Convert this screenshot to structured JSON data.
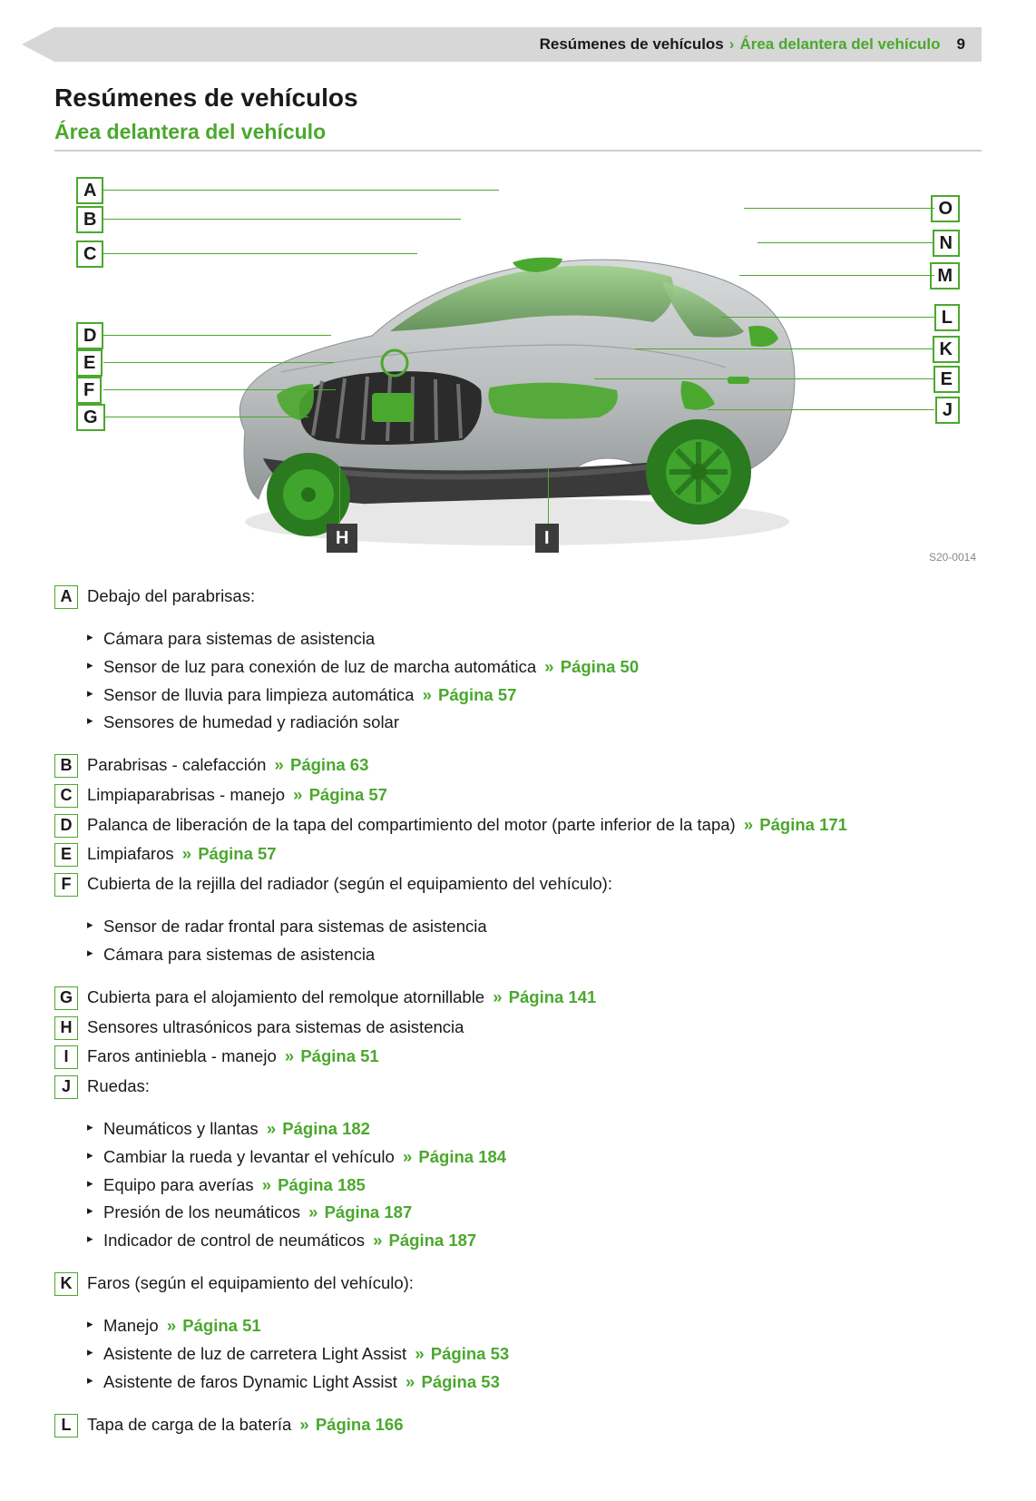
{
  "colors": {
    "green": "#4ba82e",
    "grey": "#c8c8c8"
  },
  "header": {
    "section": "Resúmenes de vehículos",
    "separator": "›",
    "subsection": "Área delantera del vehículo",
    "page_number": "9"
  },
  "title": "Resúmenes de vehículos",
  "subtitle": "Área delantera del vehículo",
  "figure": {
    "code": "S20-0014",
    "callouts_left": [
      "A",
      "B",
      "C",
      "D",
      "E",
      "F",
      "G"
    ],
    "callouts_right": [
      "O",
      "N",
      "M",
      "L",
      "K",
      "E",
      "J"
    ],
    "callouts_bottom": [
      "H",
      "I"
    ]
  },
  "xref_prefix": "» ",
  "items": [
    {
      "key": "A",
      "text": "Debajo del parabrisas:",
      "subs": [
        {
          "text": "Cámara para sistemas de asistencia"
        },
        {
          "text": "Sensor de luz para conexión de luz de marcha automática",
          "xref": "Página 50"
        },
        {
          "text": "Sensor de lluvia para limpieza automática",
          "xref": "Página 57"
        },
        {
          "text": "Sensores de humedad y radiación solar"
        }
      ]
    },
    {
      "key": "B",
      "text": "Parabrisas - calefacción",
      "xref": "Página 63"
    },
    {
      "key": "C",
      "text": "Limpiaparabrisas - manejo",
      "xref": "Página 57"
    },
    {
      "key": "D",
      "text": "Palanca de liberación de la tapa del compartimiento del motor (parte inferior de la tapa)",
      "xref": "Página 171"
    },
    {
      "key": "E",
      "text": "Limpiafaros",
      "xref": "Página 57"
    },
    {
      "key": "F",
      "text": "Cubierta de la rejilla del radiador (según el equipamiento del vehículo):",
      "subs": [
        {
          "text": "Sensor de radar frontal para sistemas de asistencia"
        },
        {
          "text": "Cámara para sistemas de asistencia"
        }
      ]
    },
    {
      "key": "G",
      "text": "Cubierta para el alojamiento del remolque atornillable",
      "xref": "Página 141"
    },
    {
      "key": "H",
      "text": "Sensores ultrasónicos para sistemas de asistencia"
    },
    {
      "key": "I",
      "text": "Faros antiniebla - manejo",
      "xref": "Página 51"
    },
    {
      "key": "J",
      "text": "Ruedas:",
      "subs": [
        {
          "text": "Neumáticos y llantas",
          "xref": "Página 182"
        },
        {
          "text": "Cambiar la rueda y levantar el vehículo",
          "xref": "Página 184"
        },
        {
          "text": "Equipo para averías",
          "xref": "Página 185"
        },
        {
          "text": "Presión de los neumáticos",
          "xref": "Página 187"
        },
        {
          "text": "Indicador de control de neumáticos",
          "xref": "Página 187"
        }
      ]
    },
    {
      "key": "K",
      "text": "Faros (según el equipamiento del vehículo):",
      "subs": [
        {
          "text": "Manejo",
          "xref": "Página 51"
        },
        {
          "text": "Asistente de luz de carretera Light Assist",
          "xref": "Página 53"
        },
        {
          "text": "Asistente de faros Dynamic Light Assist",
          "xref": "Página 53"
        }
      ]
    },
    {
      "key": "L",
      "text": "Tapa de carga de la batería",
      "xref": "Página 166"
    }
  ]
}
